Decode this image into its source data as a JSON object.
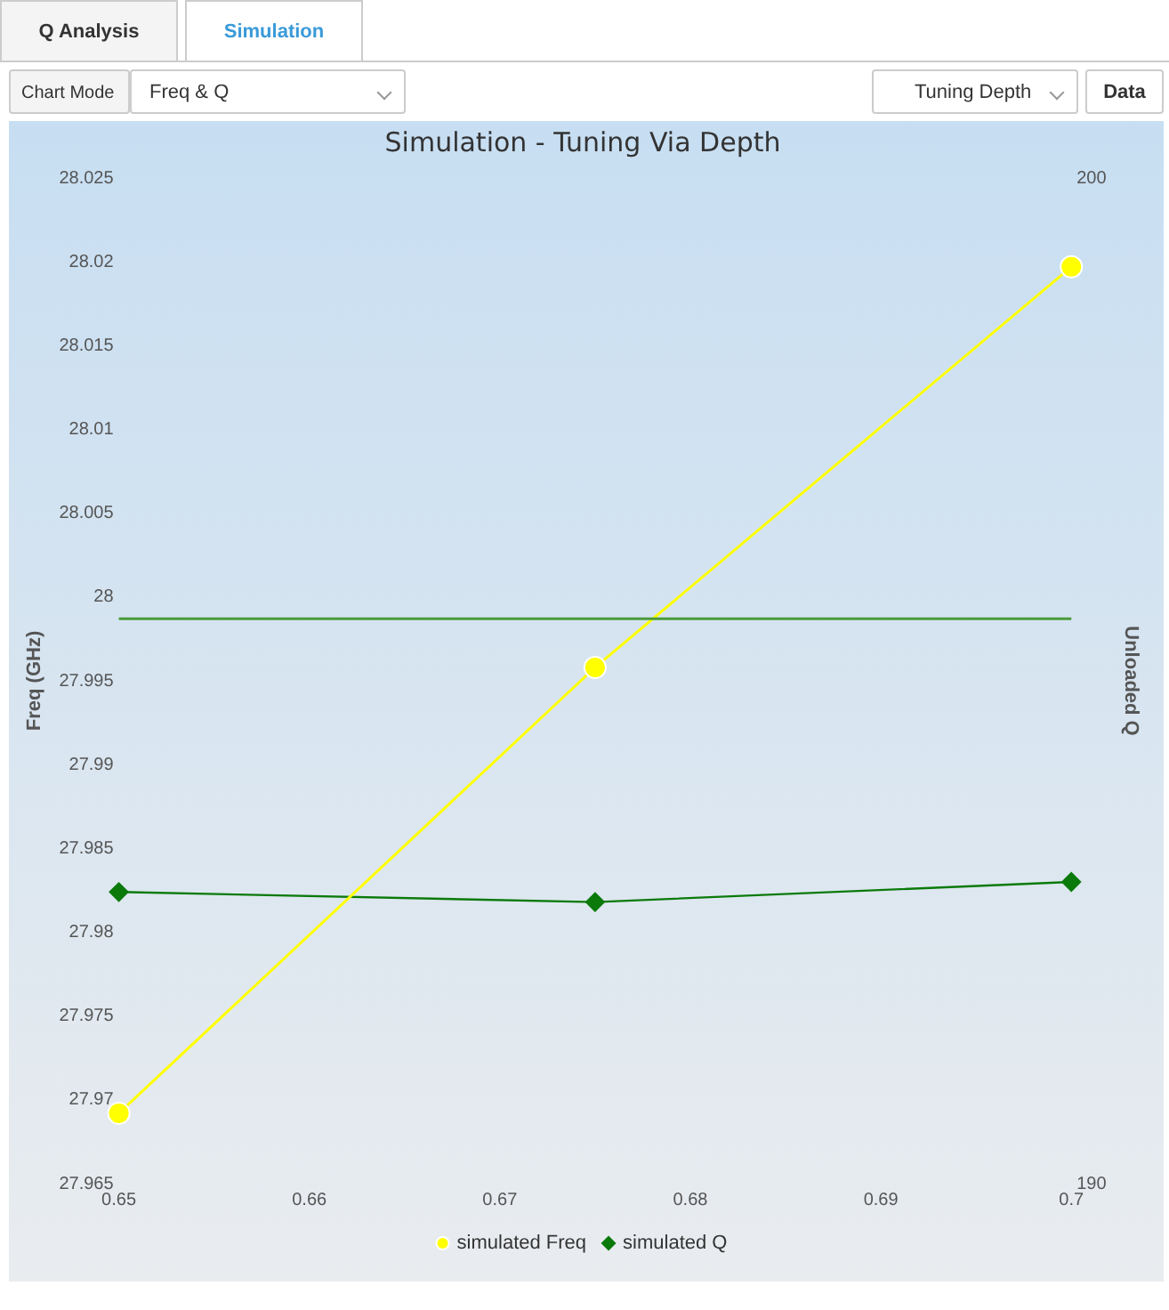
{
  "chart_data": {
    "type": "line",
    "title": "Simulation - Tuning Via Depth",
    "ylabel": "Freq (GHz)",
    "y2label": "Unloaded Q",
    "annotations": [
      "Q Analysis",
      "Simulation",
      "Chart Mode",
      "Freq & Q",
      "Tuning Depth",
      "Data"
    ],
    "x": [
      0.65,
      0.675,
      0.7
    ],
    "series": [
      {
        "name": "simulated Freq",
        "color": "#ffff00",
        "values": [
          27.9692,
          27.9958,
          28.0197
        ],
        "marker": "circle"
      },
      {
        "name": "simulated Q",
        "color": "#0a7a0a",
        "values": [
          192.9,
          192.8,
          193.0
        ],
        "axis": "y2",
        "marker": "diamond"
      }
    ],
    "xlim": [
      0.65,
      0.7
    ],
    "xticks": [
      0.65,
      0.66,
      0.67,
      0.68,
      0.69,
      0.7
    ],
    "ylim": [
      27.965,
      28.025
    ],
    "yticks": [
      27.965,
      27.97,
      27.975,
      27.98,
      27.985,
      27.99,
      27.995,
      28,
      28.005,
      28.01,
      28.015,
      28.02,
      28.025
    ],
    "y2lim": [
      190,
      200
    ],
    "y2ticks": [
      190,
      200
    ],
    "ref_lines": [
      {
        "axis": "y",
        "value": 27.9987,
        "color": "#4a9a3a"
      }
    ],
    "grid": false,
    "legend": "bottom",
    "line_style": "solid"
  }
}
